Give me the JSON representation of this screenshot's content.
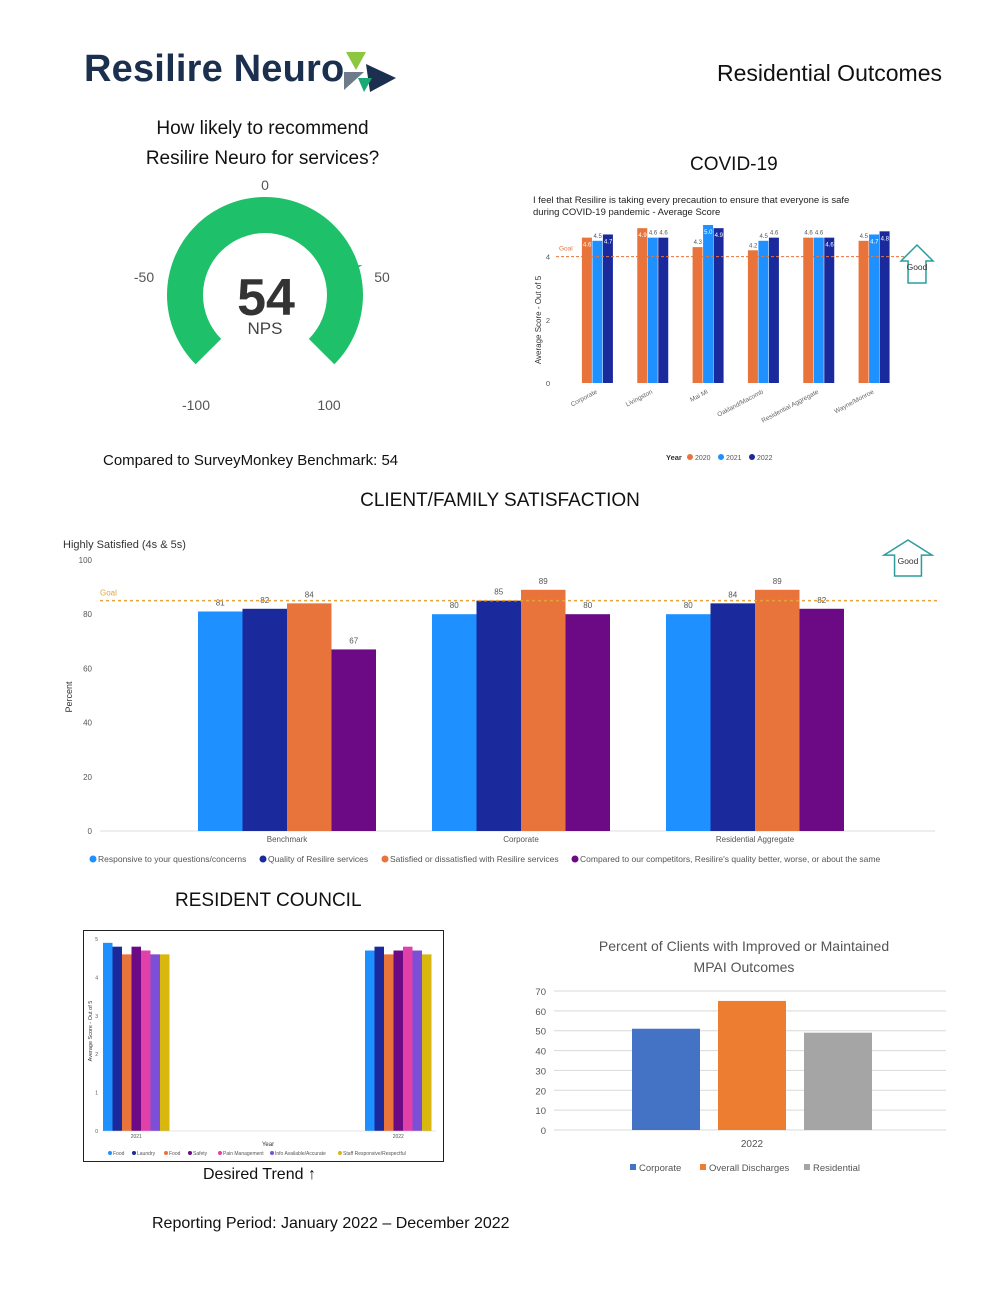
{
  "header": {
    "brand": "Resilire Neuro",
    "page_title": "Residential Outcomes"
  },
  "nps": {
    "question_line1": "How likely to recommend",
    "question_line2": "Resilire Neuro for services?",
    "value": 54,
    "value_label": "54",
    "unit": "NPS",
    "ticks": [
      "0",
      "-50",
      "50",
      "-100",
      "100"
    ],
    "benchmark_text": "Compared to SurveyMonkey Benchmark: 54",
    "color": "#1ec06a"
  },
  "covid_heading": "COVID-19",
  "satisfaction_heading": "CLIENT/FAMILY SATISFACTION",
  "resident_council_heading": "RESIDENT COUNCIL",
  "desired_trend": "Desired Trend ↑",
  "reporting_period": "Reporting Period: January 2022 – December 2022",
  "chart_data": [
    {
      "id": "covid",
      "type": "bar",
      "title": "I feel that Resilire is taking every precaution to ensure that everyone is safe during COVID-19 pandemic - Average Score",
      "title_line1": "I feel that Resilire is taking every precaution to ensure that everyone is safe",
      "title_line2": "during COVID-19 pandemic - Average Score",
      "ylabel": "Average Score - Out of 5",
      "ylim": [
        0,
        5
      ],
      "yticks": [
        "0",
        "2",
        "4"
      ],
      "goal": 4,
      "goal_label": "Goal",
      "good_label": "Good",
      "legend_title": "Year",
      "categories": [
        "Corporate",
        "Livingston",
        "Mai Mi",
        "Oakland/Macomb",
        "Residential Aggregate",
        "Wayne/Monroe"
      ],
      "series": [
        {
          "name": "2020",
          "color": "#e8743b",
          "values": [
            4.6,
            4.9,
            4.3,
            4.2,
            4.6,
            4.5
          ]
        },
        {
          "name": "2021",
          "color": "#1e90ff",
          "values": [
            4.5,
            4.6,
            5.0,
            4.5,
            4.6,
            4.7
          ]
        },
        {
          "name": "2022",
          "color": "#1a2a9c",
          "values": [
            4.7,
            4.6,
            4.9,
            4.6,
            4.6,
            4.8
          ]
        }
      ],
      "data_labels": [
        [
          "4.6",
          "4.5",
          "4.7"
        ],
        [
          "4.9",
          "4.6",
          "4.6"
        ],
        [
          "4.3",
          "5.0",
          "4.9"
        ],
        [
          "4.2",
          "4.5",
          "4.6"
        ],
        [
          "4.6",
          "4.6",
          "4.6"
        ],
        [
          "4.5",
          "4.7",
          "4.8"
        ]
      ]
    },
    {
      "id": "satisfaction",
      "type": "bar",
      "title": "Highly Satisfied (4s & 5s)",
      "ylabel": "Percent",
      "ylim": [
        0,
        100
      ],
      "yticks": [
        "0",
        "20",
        "40",
        "60",
        "80",
        "100"
      ],
      "goal": 85,
      "goal_label": "Goal",
      "good_label": "Good",
      "categories": [
        "Benchmark",
        "Corporate",
        "Residential Aggregate"
      ],
      "series": [
        {
          "name": "Responsive to your questions/concerns",
          "color": "#1e90ff",
          "values": [
            81,
            80,
            80
          ]
        },
        {
          "name": "Quality of Resilire services",
          "color": "#1a2a9c",
          "values": [
            82,
            85,
            84
          ]
        },
        {
          "name": "Satisfied or dissatisfied with Resilire services",
          "color": "#e8743b",
          "values": [
            84,
            89,
            89
          ]
        },
        {
          "name": "Compared to our competitors, Resilire's quality better, worse, or about the same",
          "color": "#6b0a84",
          "values": [
            67,
            80,
            82
          ]
        }
      ]
    },
    {
      "id": "resident_council",
      "type": "bar",
      "ylabel": "Average Score - Out of 5",
      "xlabel": "Year",
      "ylim": [
        0,
        5
      ],
      "yticks": [
        "0",
        "1",
        "2",
        "3",
        "4",
        "5"
      ],
      "categories": [
        "2021",
        "2022"
      ],
      "series": [
        {
          "name": "Food",
          "color": "#1e90ff",
          "values": [
            4.9,
            4.7
          ]
        },
        {
          "name": "Laundry",
          "color": "#1a2a9c",
          "values": [
            4.8,
            4.8
          ]
        },
        {
          "name": "Food",
          "color": "#e8743b",
          "values": [
            4.6,
            4.6
          ]
        },
        {
          "name": "Safety",
          "color": "#6b0a84",
          "values": [
            4.8,
            4.7
          ]
        },
        {
          "name": "Pain Management",
          "color": "#e040a8",
          "values": [
            4.7,
            4.8
          ]
        },
        {
          "name": "Info Available/Accurate",
          "color": "#7b4fd6",
          "values": [
            4.6,
            4.7
          ]
        },
        {
          "name": "Staff Responsive/Respectful",
          "color": "#d8b70e",
          "values": [
            4.6,
            4.6
          ]
        }
      ]
    },
    {
      "id": "mpai",
      "type": "bar",
      "title_line1": "Percent of Clients with Improved or Maintained",
      "title_line2": "MPAI Outcomes",
      "ylim": [
        0,
        70
      ],
      "yticks": [
        "0",
        "10",
        "20",
        "30",
        "40",
        "50",
        "60",
        "70"
      ],
      "categories": [
        "2022"
      ],
      "series": [
        {
          "name": "Corporate",
          "color": "#4472c4",
          "values": [
            51
          ]
        },
        {
          "name": "Overall Discharges",
          "color": "#ed7d31",
          "values": [
            65
          ]
        },
        {
          "name": "Residential",
          "color": "#a5a5a5",
          "values": [
            49
          ]
        }
      ]
    }
  ]
}
